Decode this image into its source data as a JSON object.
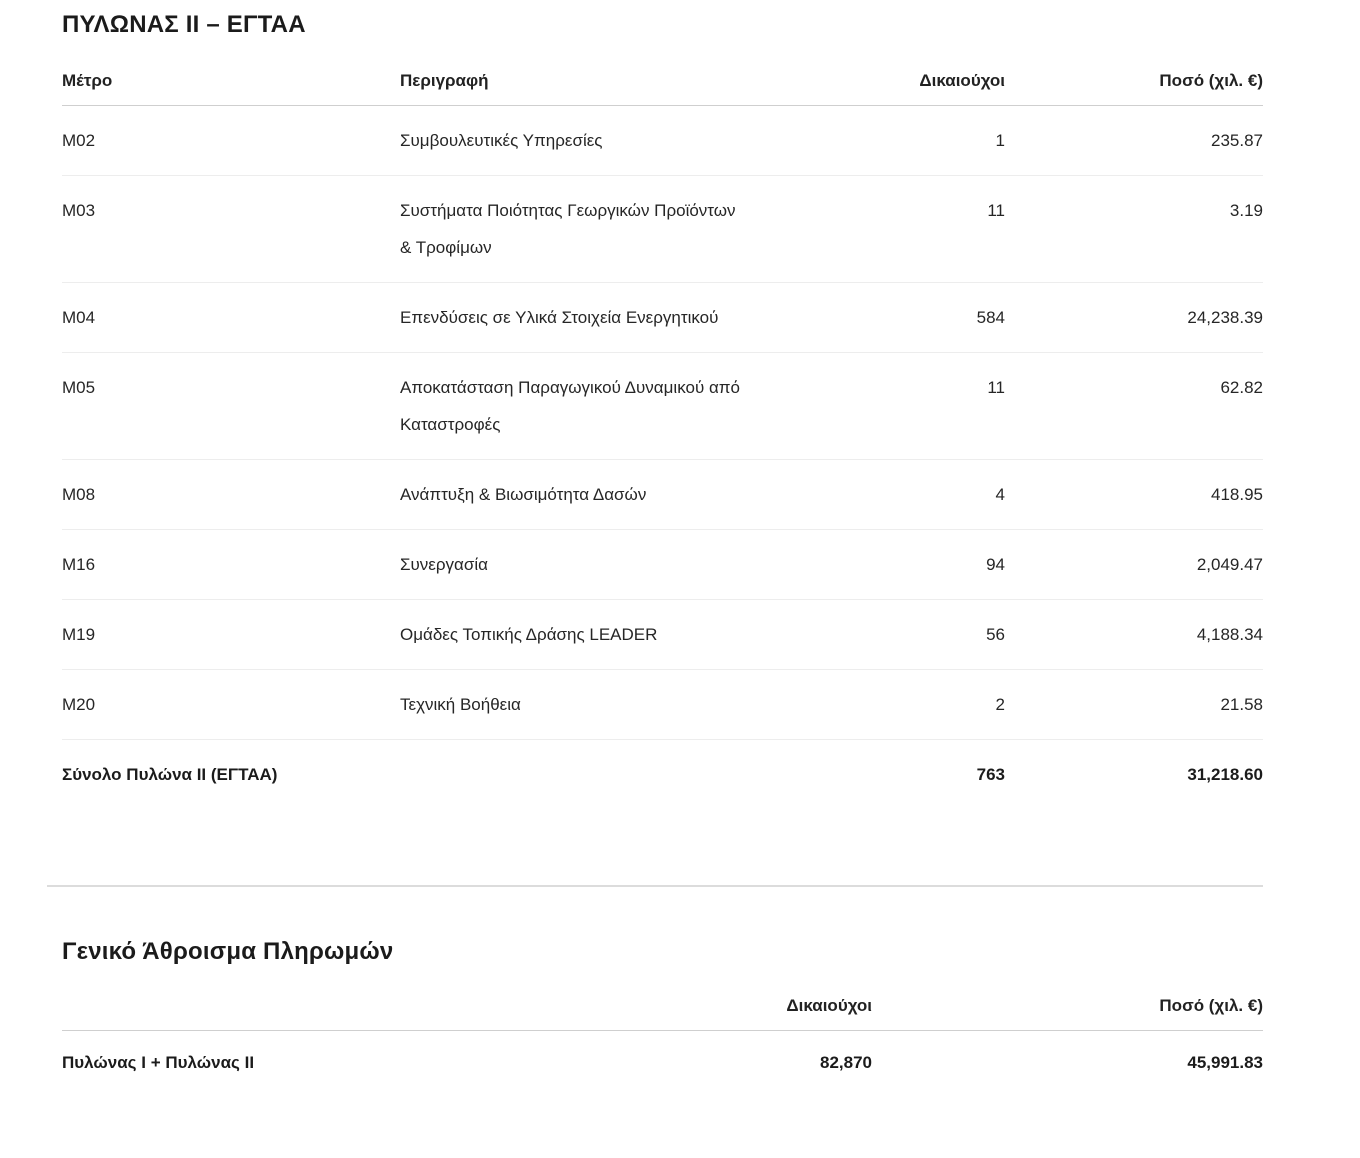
{
  "pillar2": {
    "title": "ΠΥΛΩΝΑΣ II – ΕΓΤΑΑ",
    "columns": [
      "Μέτρο",
      "Περιγραφή",
      "Δικαιούχοι",
      "Ποσό (χιλ. €)"
    ],
    "rows": [
      {
        "measure": "M02",
        "description": "Συμβουλευτικές Υπηρεσίες",
        "beneficiaries": "1",
        "amount": "235.87"
      },
      {
        "measure": "M03",
        "description": "Συστήματα Ποιότητας Γεωργικών Προϊόντων & Τροφίμων",
        "beneficiaries": "11",
        "amount": "3.19"
      },
      {
        "measure": "M04",
        "description": "Επενδύσεις σε Υλικά Στοιχεία Ενεργητικού",
        "beneficiaries": "584",
        "amount": "24,238.39"
      },
      {
        "measure": "M05",
        "description": "Αποκατάσταση Παραγωγικού Δυναμικού από Καταστροφές",
        "beneficiaries": "11",
        "amount": "62.82"
      },
      {
        "measure": "M08",
        "description": "Ανάπτυξη & Βιωσιμότητα Δασών",
        "beneficiaries": "4",
        "amount": "418.95"
      },
      {
        "measure": "M16",
        "description": "Συνεργασία",
        "beneficiaries": "94",
        "amount": "2,049.47"
      },
      {
        "measure": "M19",
        "description": "Ομάδες Τοπικής Δράσης LEADER",
        "beneficiaries": "56",
        "amount": "4,188.34"
      },
      {
        "measure": "M20",
        "description": "Τεχνική Βοήθεια",
        "beneficiaries": "2",
        "amount": "21.58"
      }
    ],
    "total": {
      "label": "Σύνολο Πυλώνα II (ΕΓΤΑΑ)",
      "beneficiaries": "763",
      "amount": "31,218.60"
    }
  },
  "grand_total": {
    "title": "Γενικό Άθροισμα Πληρωμών",
    "columns": [
      "Δικαιούχοι",
      "Ποσό (χιλ. €)"
    ],
    "row": {
      "label": "Πυλώνας I + Πυλώνας II",
      "beneficiaries": "82,870",
      "amount": "45,991.83"
    }
  }
}
